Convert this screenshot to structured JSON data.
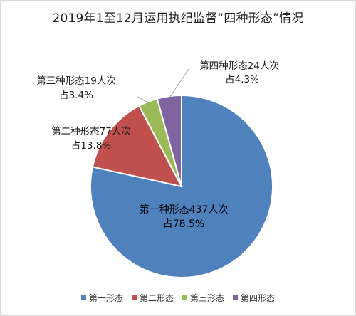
{
  "chart_data": {
    "type": "pie",
    "title": "2019年1至12月运用执纪监督“四种形态”情况",
    "categories": [
      "第一种形态",
      "第二种形态",
      "第三种形态",
      "第四种形态"
    ],
    "legend_labels": [
      "第一形态",
      "第二形态",
      "第三形态",
      "第四形态"
    ],
    "values": [
      437,
      77,
      19,
      24
    ],
    "percents": [
      "78.5%",
      "13.8%",
      "3.4%",
      "4.3%"
    ],
    "data_labels": [
      {
        "line1": "第一种形态437人次",
        "line2": "占78.5%"
      },
      {
        "line1": "第二种形态77人次",
        "line2": "占13.8%"
      },
      {
        "line1": "第三种形态19人次",
        "line2": "占3.4%"
      },
      {
        "line1": "第四种形态24人次",
        "line2": "占4.3%"
      }
    ],
    "colors": [
      "#4f81bd",
      "#c0504d",
      "#9bbb59",
      "#8064a2"
    ],
    "legend_position": "bottom",
    "start_angle_deg": 0,
    "direction": "clockwise"
  }
}
